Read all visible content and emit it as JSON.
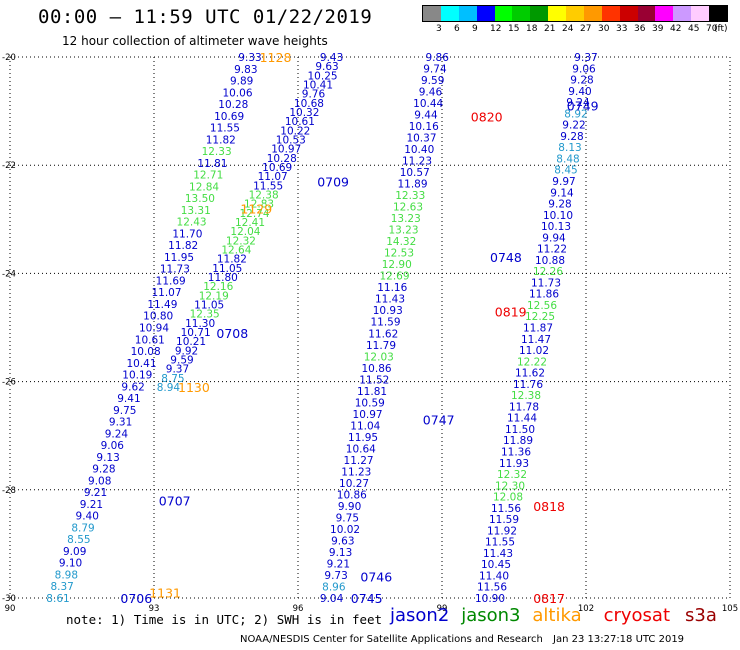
{
  "header": {
    "title": "00:00 – 11:59 UTC 01/22/2019",
    "subtitle": "12 hour collection of altimeter wave heights"
  },
  "colorbar": {
    "unit_label": "(ft)",
    "colors": [
      "#888888",
      "#00ffff",
      "#00bfff",
      "#0000ff",
      "#00ff00",
      "#00cc00",
      "#009900",
      "#ffff00",
      "#ffcc00",
      "#ff9900",
      "#ff3300",
      "#cc0000",
      "#990033",
      "#ff00ff",
      "#cc99ff",
      "#ffccff",
      "#000000"
    ],
    "labels": [
      "3",
      "6",
      "9",
      "12",
      "15",
      "18",
      "21",
      "24",
      "27",
      "30",
      "33",
      "36",
      "39",
      "42",
      "45",
      "70"
    ]
  },
  "map": {
    "lon_ticks": [
      "90",
      "93",
      "96",
      "99",
      "102",
      "105"
    ],
    "lat_ticks": [
      "-20",
      "-22",
      "-24",
      "-26",
      "-28",
      "-30"
    ],
    "lon_range": [
      90,
      105
    ],
    "lat_range": [
      -30,
      -20
    ],
    "grid": "dotted"
  },
  "tracks": [
    {
      "sat": "jason2",
      "time_labels": [
        {
          "text": "0709",
          "lon": 96.4,
          "lat": -22.3
        },
        {
          "text": "0708",
          "lon": 94.3,
          "lat": -25.1
        },
        {
          "text": "0707",
          "lon": 93.1,
          "lat": -28.2
        },
        {
          "text": "0706",
          "lon": 92.3,
          "lat": -30.0
        }
      ],
      "start": {
        "lon": 95.0,
        "lat": -20.0
      },
      "end": {
        "lon": 91.0,
        "lat": -30.0
      },
      "values": [
        "9.33",
        "9.83",
        "9.89",
        "10.06",
        "10.28",
        "10.69",
        "11.55",
        "11.82",
        "12.33",
        "11.81",
        "12.71",
        "12.84",
        "13.50",
        "13.31",
        "12.43",
        "11.70",
        "11.82",
        "11.95",
        "11.73",
        "11.69",
        "11.07",
        "11.49",
        "10.80",
        "10.94",
        "10.61",
        "10.08",
        "10.41",
        "10.19",
        "9.62",
        "9.41",
        "9.75",
        "9.31",
        "9.24",
        "9.06",
        "9.13",
        "9.28",
        "9.08",
        "9.21",
        "9.21",
        "9.40",
        "8.79",
        "8.55",
        "9.09",
        "9.10",
        "8.98",
        "8.37",
        "8.61"
      ]
    },
    {
      "sat": "jason2",
      "start": {
        "lon": 96.7,
        "lat": -20.0
      },
      "end": {
        "lon": 93.3,
        "lat": -26.1
      },
      "values": [
        "9.43",
        "9.63",
        "10.25",
        "10.41",
        "9.76",
        "10.68",
        "10.32",
        "10.61",
        "10.22",
        "10.53",
        "10.97",
        "10.28",
        "10.69",
        "11.07",
        "11.55",
        "12.38",
        "12.83",
        "12.74",
        "12.41",
        "12.04",
        "12.32",
        "12.64",
        "11.82",
        "11.05",
        "11.80",
        "12.16",
        "12.19",
        "11.05",
        "12.35",
        "11.30",
        "10.71",
        "10.21",
        "9.92",
        "9.59",
        "9.37",
        "8.75",
        "8.94"
      ]
    },
    {
      "sat": "jason2",
      "time_labels": [
        {
          "text": "0746",
          "lon": 97.3,
          "lat": -29.6
        },
        {
          "text": "0745",
          "lon": 97.1,
          "lat": -30.0
        }
      ],
      "start": {
        "lon": 98.9,
        "lat": -20.0
      },
      "end": {
        "lon": 96.7,
        "lat": -30.0
      },
      "values": [
        "9.86",
        "9.74",
        "9.59",
        "9.46",
        "10.44",
        "9.44",
        "10.16",
        "10.37",
        "10.40",
        "11.23",
        "10.57",
        "11.89",
        "12.33",
        "12.63",
        "13.23",
        "13.23",
        "14.32",
        "12.53",
        "12.90",
        "12.69",
        "11.16",
        "11.43",
        "10.93",
        "11.59",
        "11.62",
        "11.79",
        "12.03",
        "10.86",
        "11.52",
        "11.81",
        "10.59",
        "10.97",
        "11.04",
        "11.95",
        "10.64",
        "11.27",
        "11.23",
        "10.27",
        "10.86",
        "9.90",
        "9.75",
        "10.02",
        "9.63",
        "9.13",
        "9.21",
        "9.73",
        "8.96",
        "9.04"
      ]
    },
    {
      "sat": "jason2",
      "time_labels": [
        {
          "text": "0749",
          "lon": 101.6,
          "lat": -20.9
        },
        {
          "text": "0748",
          "lon": 100.0,
          "lat": -23.7
        },
        {
          "text": "0747",
          "lon": 98.6,
          "lat": -26.7
        }
      ],
      "start": {
        "lon": 102.0,
        "lat": -20.0
      },
      "end": {
        "lon": 100.0,
        "lat": -30.0
      },
      "values": [
        "9.37",
        "9.06",
        "9.28",
        "9.40",
        "9.24",
        "8.92",
        "9.22",
        "9.28",
        "8.13",
        "8.48",
        "8.45",
        "9.97",
        "9.14",
        "9.28",
        "10.10",
        "10.13",
        "9.94",
        "11.22",
        "10.88",
        "12.26",
        "11.73",
        "11.86",
        "12.56",
        "12.25",
        "11.87",
        "11.47",
        "11.02",
        "12.22",
        "11.62",
        "11.76",
        "12.38",
        "11.78",
        "11.44",
        "11.50",
        "11.89",
        "11.36",
        "11.93",
        "12.32",
        "12.30",
        "12.08",
        "11.56",
        "11.59",
        "11.92",
        "11.55",
        "11.43",
        "10.45",
        "11.40",
        "11.56",
        "10.90"
      ]
    }
  ],
  "other_labels": [
    {
      "text": "1128",
      "sat": "altika",
      "lon": 95.2,
      "lat": -20.0
    },
    {
      "text": "1129",
      "sat": "altika",
      "lon": 94.8,
      "lat": -22.8
    },
    {
      "text": "1130",
      "sat": "altika",
      "lon": 93.5,
      "lat": -26.1
    },
    {
      "text": "1131",
      "sat": "altika",
      "lon": 92.9,
      "lat": -29.9
    },
    {
      "text": "0820",
      "sat": "cryosat",
      "lon": 99.6,
      "lat": -21.1
    },
    {
      "text": "0819",
      "sat": "cryosat",
      "lon": 100.1,
      "lat": -24.7
    },
    {
      "text": "0818",
      "sat": "cryosat",
      "lon": 100.9,
      "lat": -28.3
    },
    {
      "text": "0817",
      "sat": "cryosat",
      "lon": 100.9,
      "lat": -30.0
    }
  ],
  "sat_colors": {
    "jason2": "#0000cc",
    "jason3": "#008800",
    "altika": "#ff9900",
    "cryosat": "#ee0000",
    "s3a": "#990000"
  },
  "footer": {
    "note": "note: 1) Time is in UTC; 2) SWH is in feet",
    "legend": [
      {
        "label": "jason2",
        "color": "#0000cc"
      },
      {
        "label": "jason3",
        "color": "#008800"
      },
      {
        "label": "altika",
        "color": "#ff9900"
      },
      {
        "label": "cryosat",
        "color": "#ee0000"
      },
      {
        "label": "s3a",
        "color": "#990000"
      }
    ],
    "credit": "NOAA/NESDIS Center for Satellite Applications and Research",
    "timestamp": "Jan 23 13:27:18 UTC 2019"
  }
}
